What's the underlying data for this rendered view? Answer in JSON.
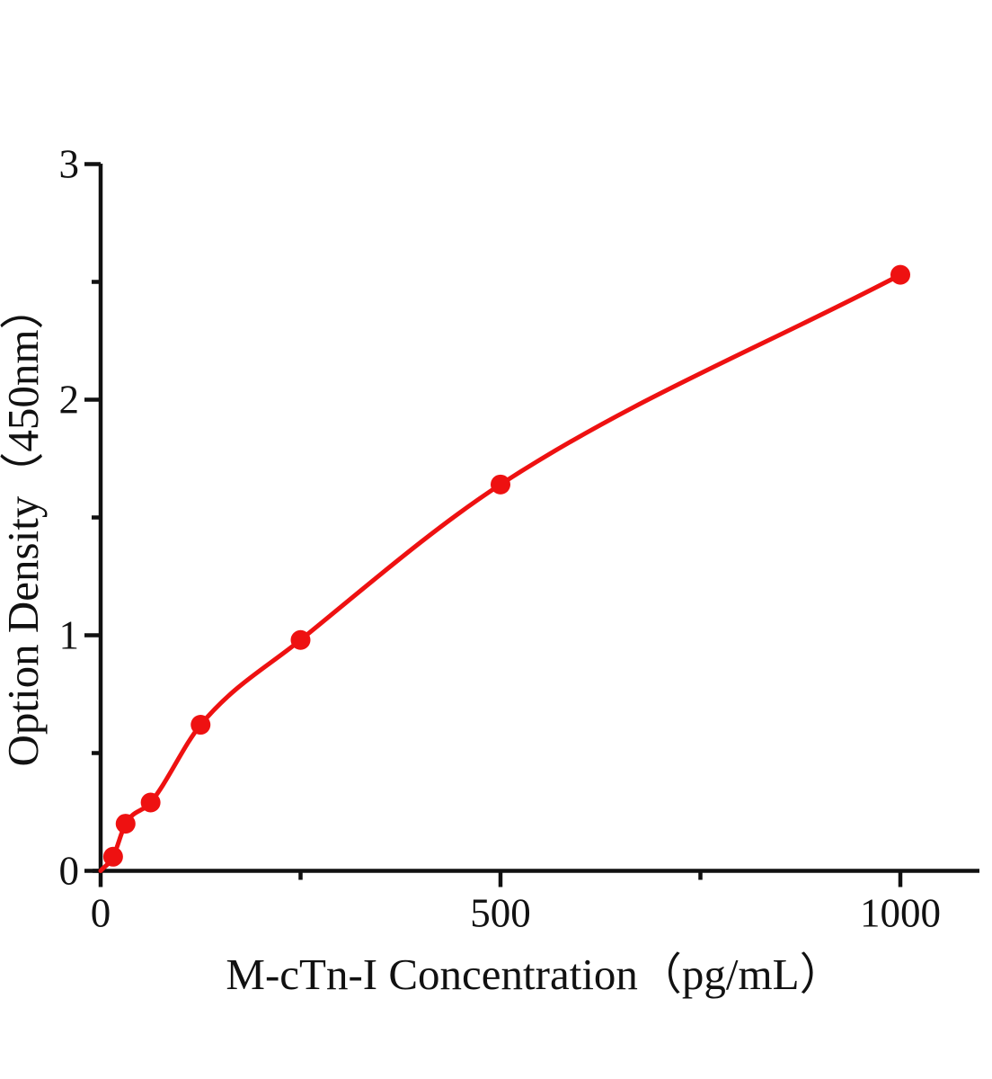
{
  "chart_data": {
    "type": "scatter",
    "title": "",
    "xlabel": "M-cTn-I Concentration（pg/mL）",
    "ylabel": "Option Density（450nm）",
    "x": [
      15.6,
      31.2,
      62.5,
      125,
      250,
      500,
      1000
    ],
    "y": [
      0.06,
      0.2,
      0.29,
      0.62,
      0.98,
      1.64,
      2.53
    ],
    "curve_start": {
      "x": 0,
      "y": 0
    },
    "xlim": [
      0,
      1100
    ],
    "ylim": [
      0,
      3
    ],
    "x_major_ticks": [
      0,
      500,
      1000
    ],
    "x_minor_ticks": [
      250,
      750
    ],
    "y_major_ticks": [
      0,
      1,
      2,
      3
    ],
    "y_minor_ticks": [
      0.5,
      1.5,
      2.5
    ],
    "x_tick_labels": [
      "0",
      "500",
      "1000"
    ],
    "y_tick_labels": [
      "0",
      "1",
      "2",
      "3"
    ],
    "grid": false,
    "legend": null,
    "colors": {
      "curve": "#ee1111",
      "points": "#ee1111",
      "axis": "#111111",
      "background": "#ffffff"
    }
  }
}
